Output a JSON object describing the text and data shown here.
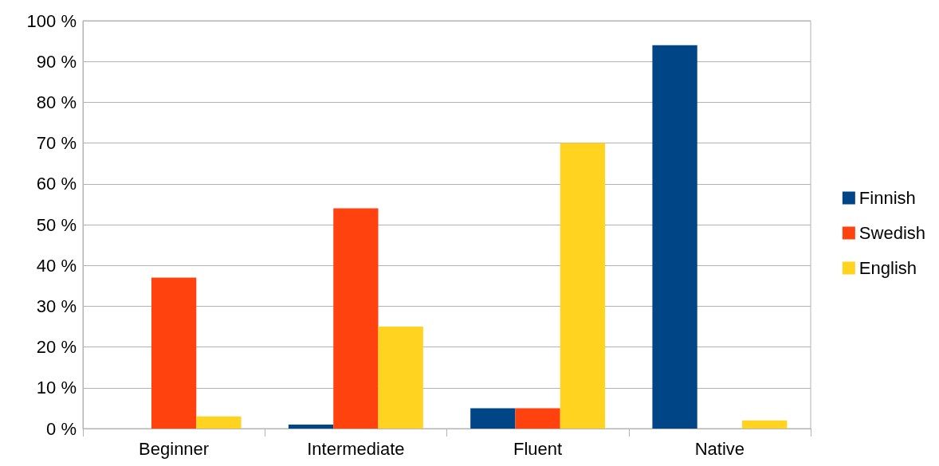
{
  "chart_data": {
    "type": "bar",
    "categories": [
      "Beginner",
      "Intermediate",
      "Fluent",
      "Native"
    ],
    "series": [
      {
        "name": "Finnish",
        "color": "#004586",
        "values": [
          0,
          1,
          5,
          94
        ]
      },
      {
        "name": "Swedish",
        "color": "#ff420e",
        "values": [
          37,
          54,
          5,
          0
        ]
      },
      {
        "name": "English",
        "color": "#ffd320",
        "values": [
          3,
          25,
          70,
          2
        ]
      }
    ],
    "ylim": [
      0,
      100
    ],
    "yticks": [
      {
        "value": 0,
        "label": "0 %"
      },
      {
        "value": 10,
        "label": "10 %"
      },
      {
        "value": 20,
        "label": "20 %"
      },
      {
        "value": 30,
        "label": "30 %"
      },
      {
        "value": 40,
        "label": "40 %"
      },
      {
        "value": 50,
        "label": "50 %"
      },
      {
        "value": 60,
        "label": "60 %"
      },
      {
        "value": 70,
        "label": "70 %"
      },
      {
        "value": 80,
        "label": "80 %"
      },
      {
        "value": 90,
        "label": "90 %"
      },
      {
        "value": 100,
        "label": "100 %"
      }
    ],
    "grid": "y",
    "legend": "right"
  }
}
